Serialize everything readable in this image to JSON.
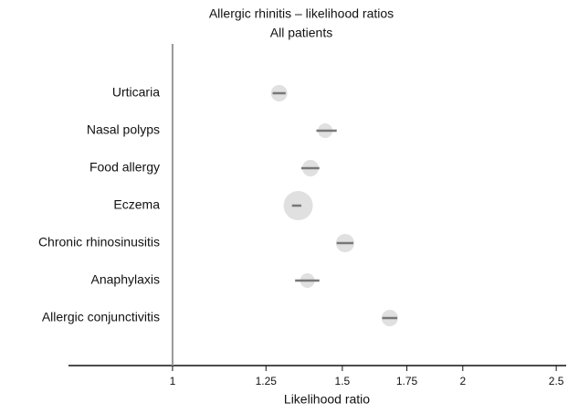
{
  "chart_data": {
    "type": "forest",
    "title": "Allergic rhinitis – likelihood ratios",
    "subtitle": "All patients",
    "x_label": "Likelihood ratio",
    "categories": [
      "Urticaria",
      "Nasal polyps",
      "Food allergy",
      "Eczema",
      "Chronic rhinosinusitis",
      "Anaphylaxis",
      "Allergic conjunctivitis"
    ],
    "values": [
      1.29,
      1.44,
      1.39,
      1.35,
      1.51,
      1.38,
      1.68
    ],
    "lower": [
      1.27,
      1.41,
      1.36,
      1.33,
      1.48,
      1.34,
      1.65
    ],
    "upper": [
      1.31,
      1.48,
      1.42,
      1.36,
      1.54,
      1.42,
      1.71
    ],
    "sizes": [
      9,
      8,
      9,
      16,
      10,
      8,
      9
    ],
    "xlim": [
      0.78,
      2.56
    ],
    "xticks": [
      1,
      1.25,
      1.5,
      1.75,
      2,
      2.5
    ],
    "xscale": "log",
    "reference": 1,
    "marker_color": "#e0e0e0",
    "ci_color": "#777777"
  }
}
